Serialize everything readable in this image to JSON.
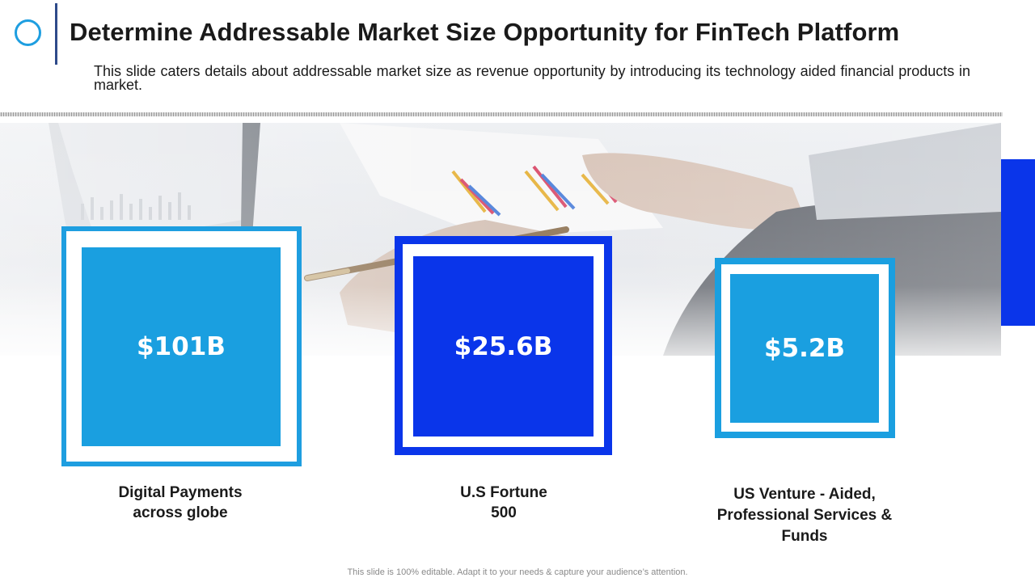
{
  "slide": {
    "title": "Determine Addressable Market Size Opportunity for FinTech Platform",
    "subtitle": "This slide caters details about addressable market size as revenue opportunity by introducing its technology aided financial products in market.",
    "footer": "This slide is 100% editable. Adapt it to your needs & capture your audience’s attention."
  },
  "cards": [
    {
      "value": "$101B",
      "caption_line1": "Digital Payments",
      "caption_line2": "across globe",
      "caption_line3": "",
      "color": "#1a9fe0"
    },
    {
      "value": "$25.6B",
      "caption_line1": "U.S Fortune",
      "caption_line2": "500",
      "caption_line3": "",
      "color": "#0a35ea"
    },
    {
      "value": "$5.2B",
      "caption_line1": "US Venture - Aided,",
      "caption_line2": "Professional Services &",
      "caption_line3": "Funds",
      "color": "#1a9fe0"
    }
  ],
  "colors": {
    "accent_light": "#1e9ee0",
    "accent_dark": "#0a35ea",
    "title_divider": "#2e4a8a"
  },
  "icons": {
    "logo": "circle-outline-icon"
  }
}
